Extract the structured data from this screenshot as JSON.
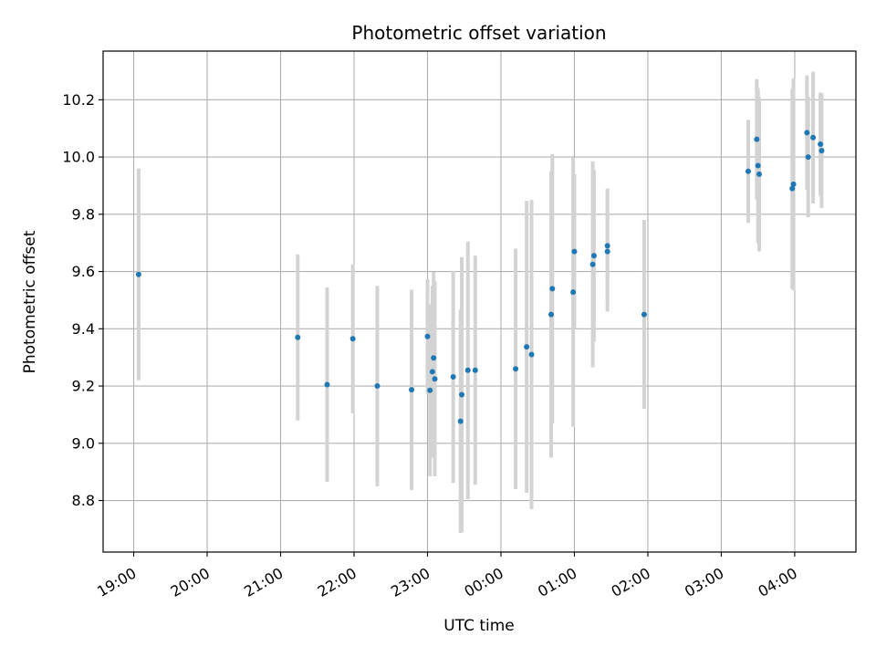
{
  "chart_data": {
    "type": "scatter",
    "title": "Photometric offset variation",
    "xlabel": "UTC time",
    "ylabel": "Photometric offset",
    "x_unit": "hours (UTC)",
    "xlim": [
      "18:35",
      "04:50"
    ],
    "ylim": [
      8.62,
      10.37
    ],
    "x_ticks": [
      "19:00",
      "20:00",
      "21:00",
      "22:00",
      "23:00",
      "00:00",
      "01:00",
      "02:00",
      "03:00",
      "04:00"
    ],
    "y_ticks": [
      "8.8",
      "9.0",
      "9.2",
      "9.4",
      "9.6",
      "9.8",
      "10.0",
      "10.2"
    ],
    "grid": true,
    "colors": {
      "point": "#1f77b4",
      "errorbar": "#d3d3d3",
      "grid": "#b0b0b0"
    },
    "points": [
      {
        "t": "19:04",
        "y": 9.59,
        "err": 0.37
      },
      {
        "t": "21:14",
        "y": 9.37,
        "err": 0.29
      },
      {
        "t": "21:38",
        "y": 9.205,
        "err": 0.34
      },
      {
        "t": "21:59",
        "y": 9.365,
        "err": 0.26
      },
      {
        "t": "22:19",
        "y": 9.2,
        "err": 0.35
      },
      {
        "t": "22:47",
        "y": 9.187,
        "err": 0.35
      },
      {
        "t": "23:00",
        "y": 9.373,
        "err": 0.2
      },
      {
        "t": "23:02",
        "y": 9.185,
        "err": 0.3
      },
      {
        "t": "23:04",
        "y": 9.25,
        "err": 0.3
      },
      {
        "t": "23:05",
        "y": 9.298,
        "err": 0.3
      },
      {
        "t": "23:06",
        "y": 9.225,
        "err": 0.34
      },
      {
        "t": "23:21",
        "y": 9.232,
        "err": 0.37
      },
      {
        "t": "23:27",
        "y": 9.077,
        "err": 0.39
      },
      {
        "t": "23:28",
        "y": 9.17,
        "err": 0.48
      },
      {
        "t": "23:33",
        "y": 9.255,
        "err": 0.45
      },
      {
        "t": "23:39",
        "y": 9.255,
        "err": 0.4
      },
      {
        "t": "00:12",
        "y": 9.26,
        "err": 0.42
      },
      {
        "t": "00:21",
        "y": 9.337,
        "err": 0.51
      },
      {
        "t": "00:25",
        "y": 9.31,
        "err": 0.54
      },
      {
        "t": "00:41",
        "y": 9.45,
        "err": 0.5
      },
      {
        "t": "00:42",
        "y": 9.54,
        "err": 0.47
      },
      {
        "t": "00:59",
        "y": 9.528,
        "err": 0.47
      },
      {
        "t": "01:00",
        "y": 9.67,
        "err": 0.27
      },
      {
        "t": "01:15",
        "y": 9.625,
        "err": 0.36
      },
      {
        "t": "01:16",
        "y": 9.655,
        "err": 0.3
      },
      {
        "t": "01:27",
        "y": 9.67,
        "err": 0.21
      },
      {
        "t": "01:27",
        "y": 9.69,
        "err": 0.2
      },
      {
        "t": "01:57",
        "y": 9.45,
        "err": 0.33
      },
      {
        "t": "03:22",
        "y": 9.95,
        "err": 0.18
      },
      {
        "t": "03:29",
        "y": 10.062,
        "err": 0.21
      },
      {
        "t": "03:30",
        "y": 9.97,
        "err": 0.27
      },
      {
        "t": "03:31",
        "y": 9.94,
        "err": 0.27
      },
      {
        "t": "03:58",
        "y": 9.89,
        "err": 0.35
      },
      {
        "t": "03:59",
        "y": 9.905,
        "err": 0.37
      },
      {
        "t": "04:10",
        "y": 10.085,
        "err": 0.2
      },
      {
        "t": "04:11",
        "y": 10.0,
        "err": 0.21
      },
      {
        "t": "04:15",
        "y": 10.068,
        "err": 0.23
      },
      {
        "t": "04:21",
        "y": 10.045,
        "err": 0.18
      },
      {
        "t": "04:22",
        "y": 10.022,
        "err": 0.2
      }
    ]
  }
}
